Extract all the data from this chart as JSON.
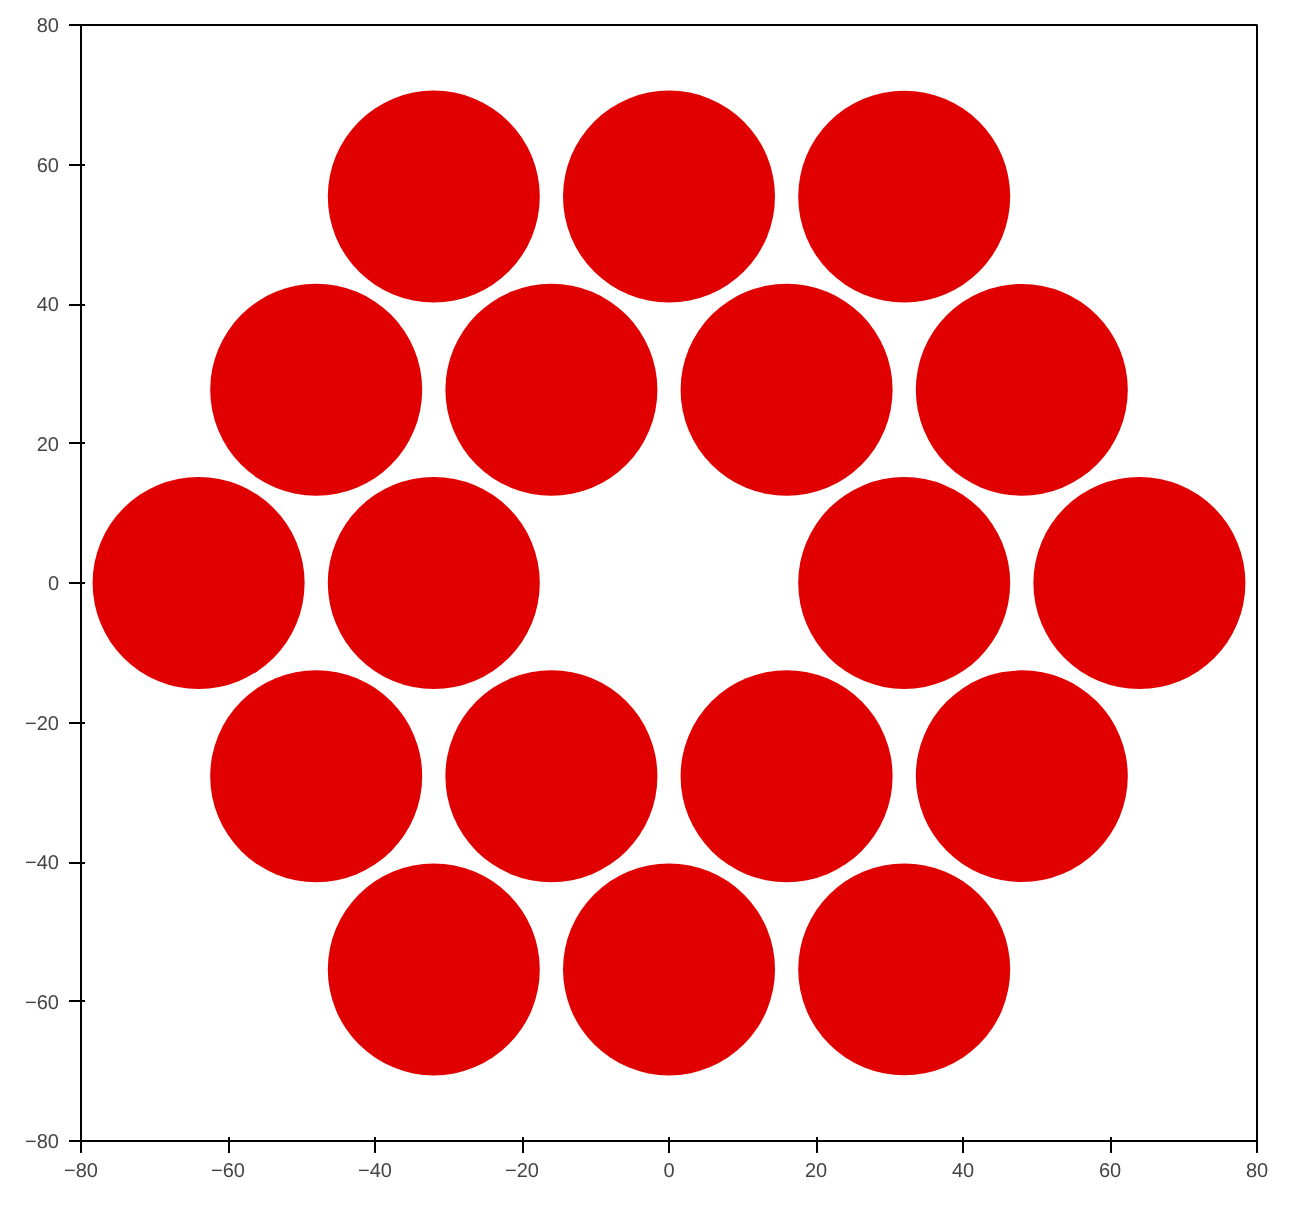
{
  "chart_data": {
    "type": "bubble",
    "x": [
      -32,
      0,
      32,
      -48,
      -16,
      16,
      48,
      -64,
      -32,
      32,
      64,
      -48,
      -16,
      16,
      48,
      -32,
      0,
      32
    ],
    "series": [
      {
        "color": "#e00000",
        "values": [
          55.4,
          55.4,
          55.4,
          27.7,
          27.7,
          27.7,
          27.7,
          0,
          0,
          0,
          0,
          -27.7,
          -27.7,
          -27.7,
          -27.7,
          -55.4,
          -55.4,
          -55.4
        ],
        "sizes": [
          1,
          1,
          1,
          1,
          1,
          1,
          1,
          1,
          1,
          1,
          1,
          1,
          1,
          1,
          1,
          1,
          1,
          1
        ]
      }
    ],
    "xlim": [
      -80,
      80
    ],
    "ylim": [
      -80,
      80
    ],
    "xticks": [
      -80,
      -60,
      -40,
      -20,
      0,
      20,
      40,
      60,
      80
    ],
    "yticks": [
      -80,
      -60,
      -40,
      -20,
      0,
      20,
      40,
      60,
      80
    ],
    "grid": false
  }
}
